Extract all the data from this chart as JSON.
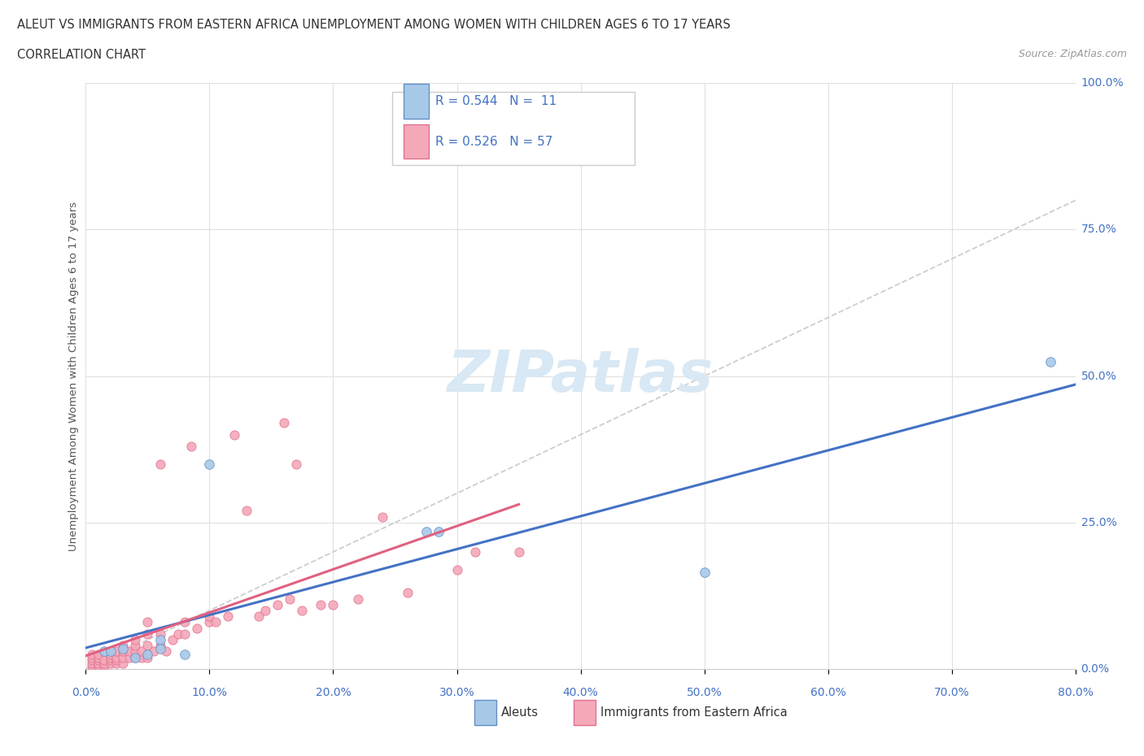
{
  "title_line1": "ALEUT VS IMMIGRANTS FROM EASTERN AFRICA UNEMPLOYMENT AMONG WOMEN WITH CHILDREN AGES 6 TO 17 YEARS",
  "title_line2": "CORRELATION CHART",
  "source_text": "Source: ZipAtlas.com",
  "yticks_labels": [
    "0.0%",
    "25.0%",
    "50.0%",
    "75.0%",
    "100.0%"
  ],
  "yticks_values": [
    0.0,
    0.25,
    0.5,
    0.75,
    1.0
  ],
  "xticks_values": [
    0.0,
    0.1,
    0.2,
    0.3,
    0.4,
    0.5,
    0.6,
    0.7,
    0.8
  ],
  "xticks_labels": [
    "0.0%",
    "10.0%",
    "20.0%",
    "30.0%",
    "40.0%",
    "50.0%",
    "60.0%",
    "70.0%",
    "80.0%"
  ],
  "xlim": [
    0.0,
    0.8
  ],
  "ylim": [
    0.0,
    1.0
  ],
  "ylabel_label": "Unemployment Among Women with Children Ages 6 to 17 years",
  "aleut_color": "#a8c8e8",
  "eastern_color": "#f4a8b8",
  "aleut_edge_color": "#6090c8",
  "eastern_edge_color": "#e07090",
  "aleut_line_color": "#4472c4",
  "eastern_line_color": "#e06080",
  "diag_line_color": "#c8c8c8",
  "tick_label_color": "#4472c4",
  "watermark_color": "#d8e8f4",
  "aleut_scatter_x": [
    0.015,
    0.02,
    0.03,
    0.04,
    0.05,
    0.06,
    0.06,
    0.08,
    0.1,
    0.275,
    0.285,
    0.5,
    0.78
  ],
  "aleut_scatter_y": [
    0.03,
    0.03,
    0.035,
    0.02,
    0.025,
    0.05,
    0.035,
    0.025,
    0.35,
    0.235,
    0.235,
    0.165,
    0.525
  ],
  "eastern_scatter_x": [
    0.005,
    0.005,
    0.005,
    0.005,
    0.005,
    0.01,
    0.01,
    0.01,
    0.01,
    0.01,
    0.015,
    0.015,
    0.015,
    0.02,
    0.02,
    0.02,
    0.02,
    0.025,
    0.025,
    0.025,
    0.025,
    0.03,
    0.03,
    0.03,
    0.03,
    0.035,
    0.035,
    0.04,
    0.04,
    0.04,
    0.04,
    0.045,
    0.045,
    0.05,
    0.05,
    0.05,
    0.05,
    0.055,
    0.06,
    0.06,
    0.06,
    0.065,
    0.07,
    0.075,
    0.08,
    0.08,
    0.085,
    0.09,
    0.1,
    0.1,
    0.105,
    0.115,
    0.12,
    0.13,
    0.14,
    0.145,
    0.155,
    0.16,
    0.165,
    0.17,
    0.175,
    0.19,
    0.2,
    0.22,
    0.24,
    0.26,
    0.3,
    0.315,
    0.35
  ],
  "eastern_scatter_y": [
    0.005,
    0.01,
    0.015,
    0.02,
    0.025,
    0.005,
    0.01,
    0.015,
    0.02,
    0.025,
    0.005,
    0.01,
    0.015,
    0.01,
    0.015,
    0.02,
    0.025,
    0.01,
    0.015,
    0.02,
    0.03,
    0.01,
    0.02,
    0.03,
    0.04,
    0.02,
    0.03,
    0.02,
    0.03,
    0.04,
    0.05,
    0.02,
    0.03,
    0.02,
    0.04,
    0.06,
    0.08,
    0.03,
    0.04,
    0.06,
    0.35,
    0.03,
    0.05,
    0.06,
    0.06,
    0.08,
    0.38,
    0.07,
    0.08,
    0.09,
    0.08,
    0.09,
    0.4,
    0.27,
    0.09,
    0.1,
    0.11,
    0.42,
    0.12,
    0.35,
    0.1,
    0.11,
    0.11,
    0.12,
    0.26,
    0.13,
    0.17,
    0.2,
    0.2
  ],
  "background_color": "#ffffff"
}
